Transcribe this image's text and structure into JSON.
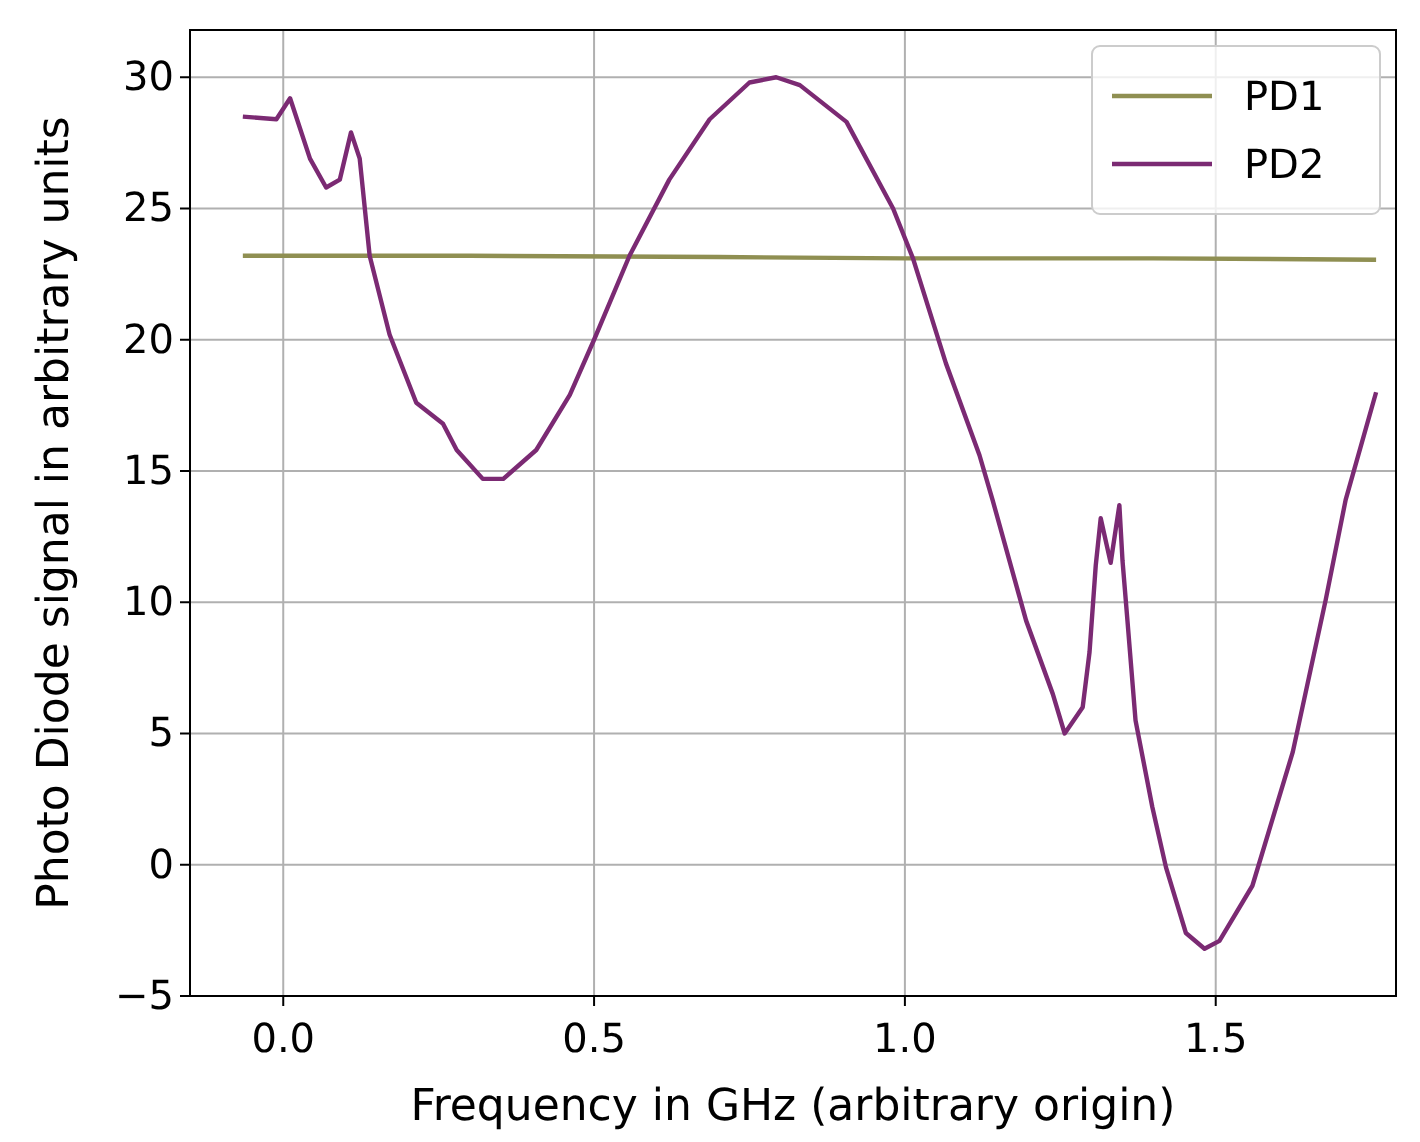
{
  "chart_data": {
    "type": "line",
    "xlabel": "Frequency in GHz (arbitrary origin)",
    "ylabel": "Photo Diode signal in arbitrary units",
    "xlim": [
      -0.15,
      1.79
    ],
    "ylim": [
      -5,
      31.8
    ],
    "xticks": [
      {
        "value": 0,
        "label": "0.0"
      },
      {
        "value": 0.5,
        "label": "0.5"
      },
      {
        "value": 1,
        "label": "1.0"
      },
      {
        "value": 1.5,
        "label": "1.5"
      }
    ],
    "yticks": [
      {
        "value": -5,
        "label": "−5"
      },
      0,
      5,
      10,
      15,
      20,
      25,
      30
    ],
    "grid": true,
    "legend": "top right",
    "line_style": "solid",
    "marker": "none",
    "series": [
      {
        "name": "PD1",
        "color": "#8f8f52",
        "x": [
          -0.065,
          0.3,
          0.7,
          1.0,
          1.4,
          1.758
        ],
        "values": [
          23.2,
          23.2,
          23.15,
          23.1,
          23.1,
          23.05
        ]
      },
      {
        "name": "PD2",
        "color": "#7b2a73",
        "x": [
          -0.065,
          -0.011,
          0.011,
          0.043,
          0.069,
          0.091,
          0.109,
          0.123,
          0.139,
          0.171,
          0.214,
          0.257,
          0.279,
          0.321,
          0.354,
          0.407,
          0.461,
          0.5,
          0.557,
          0.621,
          0.686,
          0.75,
          0.793,
          0.831,
          0.906,
          0.981,
          1.013,
          1.066,
          1.12,
          1.141,
          1.195,
          1.238,
          1.257,
          1.286,
          1.297,
          1.307,
          1.315,
          1.331,
          1.345,
          1.35,
          1.358,
          1.371,
          1.398,
          1.42,
          1.452,
          1.482,
          1.506,
          1.559,
          1.624,
          1.677,
          1.709,
          1.758
        ],
        "values": [
          28.5,
          28.4,
          29.2,
          26.9,
          25.8,
          26.1,
          27.9,
          26.9,
          23.2,
          20.2,
          17.6,
          16.8,
          15.8,
          14.7,
          14.7,
          15.8,
          17.9,
          20,
          23.2,
          26.1,
          28.4,
          29.8,
          30.0,
          29.7,
          28.3,
          25.0,
          23.1,
          19.1,
          15.6,
          13.9,
          9.3,
          6.5,
          5.0,
          6.0,
          8.1,
          11.4,
          13.2,
          11.5,
          13.7,
          11.6,
          9.3,
          5.5,
          2.2,
          -0.1,
          -2.6,
          -3.2,
          -2.9,
          -0.8,
          4.3,
          10.1,
          13.9,
          18.0
        ]
      }
    ]
  }
}
